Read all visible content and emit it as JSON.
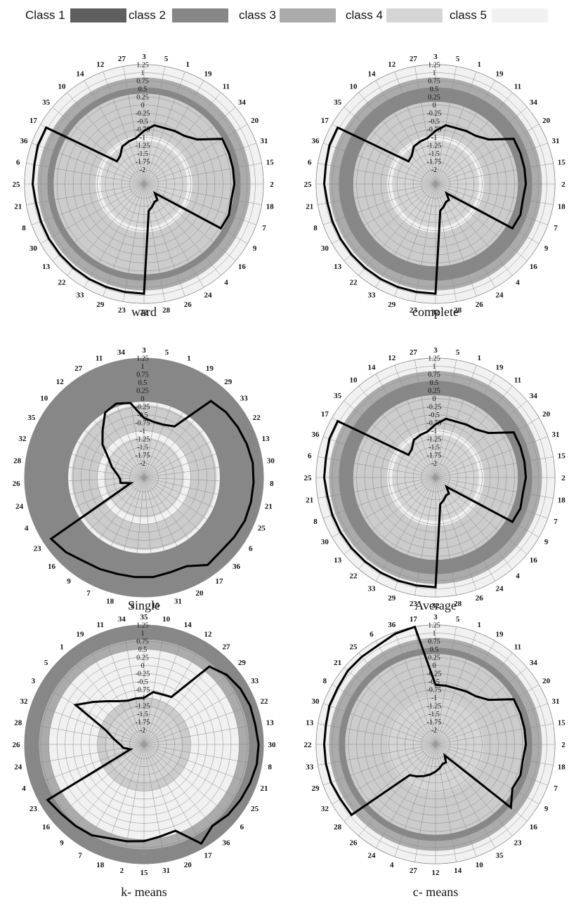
{
  "legend": [
    {
      "label": "Class 1",
      "color": "#5f5f5f"
    },
    {
      "label": "class 2",
      "color": "#878787"
    },
    {
      "label": "class 3",
      "color": "#ababab"
    },
    {
      "label": "class 4",
      "color": "#d5d5d5"
    },
    {
      "label": "class 5",
      "color": "#f1f1f1"
    }
  ],
  "chart_data": [
    {
      "type": "radar",
      "title": "ward",
      "rlim": [
        -2,
        1.25
      ],
      "ticks": [
        "1.25",
        "1",
        "0.75",
        "0.5",
        "0.25",
        "0",
        "-0.25",
        "-0.5",
        "-0.75",
        "-1",
        "-1.25",
        "-1.5",
        "-1.75",
        "-2"
      ],
      "categories": [
        "3",
        "5",
        "1",
        "19",
        "11",
        "34",
        "20",
        "31",
        "15",
        "2",
        "18",
        "7",
        "9",
        "16",
        "4",
        "24",
        "26",
        "28",
        "32",
        "23",
        "29",
        "33",
        "22",
        "13",
        "30",
        "8",
        "21",
        "25",
        "6",
        "36",
        "17",
        "35",
        "10",
        "14",
        "12",
        "27"
      ],
      "bands": [
        {
          "class": "class 5",
          "from": -1.1,
          "to": -0.95
        },
        {
          "class": "class 4",
          "from": -2,
          "to": -1.1
        },
        {
          "class": "class 1",
          "from": -0.95,
          "to": 0.35
        },
        {
          "class": "class 2",
          "from": 0.35,
          "to": 0.55
        },
        {
          "class": "class 3",
          "from": 0.55,
          "to": 0.85
        },
        {
          "class": "class 5",
          "from": 0.85,
          "to": 1.25
        }
      ],
      "values": [
        -0.8,
        -0.6,
        -0.6,
        -0.55,
        -0.5,
        -0.3,
        0.35,
        0.35,
        0.35,
        0.35,
        0.3,
        0.35,
        0.3,
        -2,
        -1.8,
        -1.8,
        -1.7,
        -1.6,
        0.95,
        0.95,
        0.95,
        0.95,
        0.95,
        0.95,
        0.95,
        0.95,
        0.95,
        1.0,
        1.0,
        1.05,
        1.05,
        -1.35,
        -1.3,
        -1.1,
        -1.05,
        -1.0
      ]
    },
    {
      "type": "radar",
      "title": "complete",
      "rlim": [
        -2,
        1.25
      ],
      "ticks": [
        "1.25",
        "1",
        "0.75",
        "0.5",
        "0.25",
        "0",
        "-0.25",
        "-0.5",
        "-0.75",
        "-1",
        "-1.25",
        "-1.5",
        "-1.75",
        "-2"
      ],
      "categories": [
        "3",
        "5",
        "1",
        "19",
        "11",
        "34",
        "20",
        "31",
        "15",
        "2",
        "18",
        "7",
        "9",
        "16",
        "4",
        "24",
        "26",
        "28",
        "32",
        "23",
        "29",
        "33",
        "22",
        "13",
        "30",
        "8",
        "21",
        "25",
        "6",
        "36",
        "17",
        "35",
        "10",
        "14",
        "12",
        "27"
      ],
      "bands": [
        {
          "class": "class 5",
          "from": -1.1,
          "to": -0.95
        },
        {
          "class": "class 4",
          "from": -2,
          "to": -1.1
        },
        {
          "class": "class 1",
          "from": -0.95,
          "to": 0.1
        },
        {
          "class": "class 2",
          "from": 0.1,
          "to": 0.55
        },
        {
          "class": "class 3",
          "from": 0.55,
          "to": 0.85
        },
        {
          "class": "class 5",
          "from": 0.85,
          "to": 1.25
        }
      ],
      "values": [
        -0.8,
        -0.6,
        -0.6,
        -0.55,
        -0.5,
        -0.3,
        0.35,
        0.35,
        0.35,
        0.35,
        0.3,
        0.35,
        0.3,
        -2,
        -1.8,
        -1.8,
        -1.7,
        -1.6,
        0.95,
        0.95,
        0.95,
        0.95,
        0.95,
        0.95,
        0.95,
        0.95,
        0.95,
        1.0,
        1.0,
        1.05,
        1.05,
        -1.35,
        -1.3,
        -1.1,
        -1.05,
        -1.0
      ]
    },
    {
      "type": "radar",
      "title": "Single",
      "rlim": [
        -2,
        1.25
      ],
      "ticks": [
        "1.25",
        "1",
        "0.75",
        "0.5",
        "0.25",
        "0",
        "-0.25",
        "-0.5",
        "-0.75",
        "-1",
        "-1.25",
        "-1.5",
        "-1.75",
        "-2"
      ],
      "categories": [
        "3",
        "5",
        "1",
        "19",
        "29",
        "33",
        "22",
        "13",
        "30",
        "8",
        "21",
        "25",
        "6",
        "36",
        "17",
        "20",
        "31",
        "15",
        "2",
        "18",
        "7",
        "9",
        "16",
        "23",
        "4",
        "24",
        "26",
        "28",
        "32",
        "35",
        "10",
        "12",
        "27",
        "11",
        "34"
      ],
      "bands": [
        {
          "class": "class 4",
          "from": -2,
          "to": -1.2
        },
        {
          "class": "class 5",
          "from": -1.2,
          "to": -1.0
        },
        {
          "class": "class 1",
          "from": -1.0,
          "to": -0.2
        },
        {
          "class": "class 5",
          "from": -0.2,
          "to": -0.1
        },
        {
          "class": "class 2",
          "from": -0.1,
          "to": 1.25
        }
      ],
      "values": [
        -0.6,
        -0.7,
        -0.7,
        -0.6,
        0.7,
        0.8,
        0.85,
        0.9,
        0.95,
        0.95,
        0.95,
        0.95,
        0.9,
        0.85,
        0.9,
        0.6,
        0.6,
        0.65,
        0.65,
        0.65,
        0.7,
        0.75,
        0.9,
        1.0,
        -2,
        -1.7,
        -1.7,
        -1.6,
        -1.4,
        -1.2,
        -0.8,
        -0.5,
        -0.1,
        0.0,
        -0.1
      ]
    },
    {
      "type": "radar",
      "title": "Average",
      "rlim": [
        -2,
        1.25
      ],
      "ticks": [
        "1.25",
        "1",
        "0.75",
        "0.5",
        "0.25",
        "0",
        "-0.25",
        "-0.5",
        "-0.75",
        "-1",
        "-1.25",
        "-1.5",
        "-1.75",
        "-2"
      ],
      "categories": [
        "3",
        "5",
        "1",
        "19",
        "11",
        "34",
        "20",
        "31",
        "15",
        "2",
        "18",
        "7",
        "9",
        "16",
        "4",
        "24",
        "26",
        "28",
        "32",
        "23",
        "29",
        "33",
        "22",
        "13",
        "30",
        "8",
        "21",
        "25",
        "6",
        "36",
        "17",
        "35",
        "10",
        "14",
        "12",
        "27"
      ],
      "bands": [
        {
          "class": "class 5",
          "from": -1.1,
          "to": -0.95
        },
        {
          "class": "class 4",
          "from": -2,
          "to": -1.1
        },
        {
          "class": "class 1",
          "from": -0.95,
          "to": 0.1
        },
        {
          "class": "class 2",
          "from": 0.1,
          "to": 0.55
        },
        {
          "class": "class 3",
          "from": 0.55,
          "to": 0.85
        },
        {
          "class": "class 5",
          "from": 0.85,
          "to": 1.25
        }
      ],
      "values": [
        -0.8,
        -0.6,
        -0.6,
        -0.55,
        -0.5,
        -0.3,
        0.35,
        0.35,
        0.35,
        0.35,
        0.3,
        0.35,
        0.3,
        -2,
        -1.8,
        -1.8,
        -1.7,
        -1.6,
        0.95,
        0.95,
        0.95,
        0.95,
        0.95,
        0.95,
        0.95,
        0.95,
        0.95,
        1.0,
        1.0,
        1.05,
        1.05,
        -1.35,
        -1.3,
        -1.1,
        -1.05,
        -1.0
      ]
    },
    {
      "type": "radar",
      "title": "k- means",
      "rlim": [
        -2,
        1.25
      ],
      "ticks": [
        "1.25",
        "1",
        "0.75",
        "0.5",
        "0.25",
        "0",
        "-0.25",
        "-0.5",
        "-0.75",
        "-1",
        "-1.25",
        "-1.5",
        "-1.75",
        "-2"
      ],
      "categories": [
        "35",
        "10",
        "14",
        "12",
        "27",
        "29",
        "33",
        "22",
        "13",
        "30",
        "8",
        "21",
        "25",
        "6",
        "36",
        "17",
        "20",
        "31",
        "15",
        "2",
        "18",
        "7",
        "9",
        "16",
        "23",
        "4",
        "24",
        "26",
        "28",
        "32",
        "3",
        "5",
        "1",
        "19",
        "11",
        "34"
      ],
      "bands": [
        {
          "class": "class 4",
          "from": -2,
          "to": -1.3
        },
        {
          "class": "class 1",
          "from": -1.3,
          "to": -1.0
        },
        {
          "class": "class 5",
          "from": -1.0,
          "to": 0.5
        },
        {
          "class": "class 3",
          "from": 0.5,
          "to": 0.8
        },
        {
          "class": "class 2",
          "from": 0.8,
          "to": 1.25
        }
      ],
      "values": [
        -1.0,
        -0.8,
        -0.8,
        -0.75,
        0.7,
        0.9,
        1.0,
        1.05,
        1.05,
        1.1,
        1.1,
        1.05,
        1.0,
        0.95,
        0.85,
        1.1,
        0.4,
        0.45,
        0.55,
        0.6,
        0.65,
        0.8,
        0.85,
        0.9,
        1.0,
        -2,
        -1.8,
        -1.7,
        -1.5,
        -1.2,
        0.0,
        -0.4,
        -0.7,
        -0.9,
        -1.0,
        -1.0
      ]
    },
    {
      "type": "radar",
      "title": "c- means",
      "rlim": [
        -2,
        1.25
      ],
      "ticks": [
        "1.25",
        "1",
        "0.75",
        "0.5",
        "0.25",
        "0",
        "-0.25",
        "-0.5",
        "-0.75",
        "-1",
        "-1.25",
        "-1.5",
        "-1.75",
        "-2"
      ],
      "categories": [
        "3",
        "5",
        "1",
        "19",
        "11",
        "34",
        "20",
        "31",
        "15",
        "2",
        "18",
        "7",
        "9",
        "16",
        "23",
        "35",
        "10",
        "14",
        "12",
        "27",
        "4",
        "24",
        "26",
        "28",
        "32",
        "29",
        "33",
        "22",
        "13",
        "30",
        "8",
        "21",
        "25",
        "6",
        "36",
        "17"
      ],
      "bands": [
        {
          "class": "class 4",
          "from": -2,
          "to": -0.95
        },
        {
          "class": "class 1",
          "from": -0.95,
          "to": 0.35
        },
        {
          "class": "class 2",
          "from": 0.35,
          "to": 0.55
        },
        {
          "class": "class 3",
          "from": 0.55,
          "to": 0.85
        },
        {
          "class": "class 5",
          "from": 0.85,
          "to": 1.25
        }
      ],
      "values": [
        -0.6,
        -0.6,
        -0.6,
        -0.55,
        -0.5,
        -0.3,
        0.35,
        0.35,
        0.35,
        0.35,
        0.3,
        0.35,
        0.3,
        0.6,
        -2,
        -1.8,
        -1.8,
        -1.7,
        -1.6,
        -1.5,
        -1.4,
        -1.3,
        -1.2,
        0.95,
        0.95,
        1.0,
        1.0,
        1.0,
        1.0,
        1.05,
        1.05,
        1.1,
        1.1,
        1.1,
        1.2,
        1.25
      ]
    }
  ]
}
